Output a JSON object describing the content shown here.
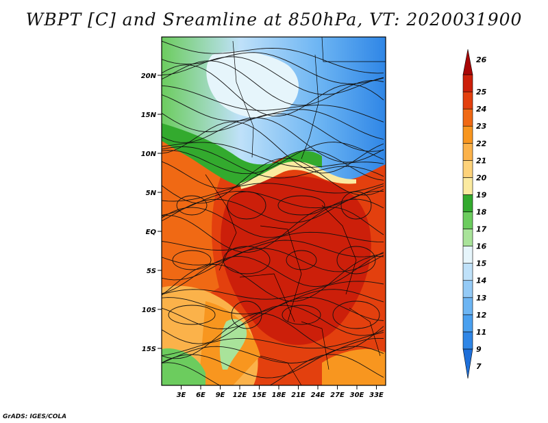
{
  "title": "WBPT [C] and Sreamline at 850hPa, VT: 2020031900",
  "footer": "GrADS: IGES/COLA",
  "map": {
    "variable": "WBPT",
    "level": "850hPa",
    "valid_time": "2020031900",
    "lat_ticks": [
      "20N",
      "15N",
      "10N",
      "5N",
      "EQ",
      "5S",
      "10S",
      "15S"
    ],
    "lon_ticks": [
      "3E",
      "6E",
      "9E",
      "12E",
      "15E",
      "18E",
      "21E",
      "24E",
      "27E",
      "30E",
      "33E"
    ]
  },
  "colorbar": {
    "labels": [
      "7",
      "9",
      "11",
      "12",
      "13",
      "14",
      "15",
      "16",
      "17",
      "18",
      "19",
      "20",
      "21",
      "22",
      "23",
      "24",
      "25",
      "26"
    ],
    "colors": [
      "#1e6fd9",
      "#2f86e6",
      "#4aa0ef",
      "#6db5f3",
      "#94caf6",
      "#bfe1f9",
      "#e6f5fb",
      "#a9e39a",
      "#6ccc5e",
      "#33aa2e",
      "#fbeaa0",
      "#fdd27a",
      "#fbb24a",
      "#f8961f",
      "#f06914",
      "#e3400e",
      "#cc1f0a",
      "#a80606"
    ]
  }
}
